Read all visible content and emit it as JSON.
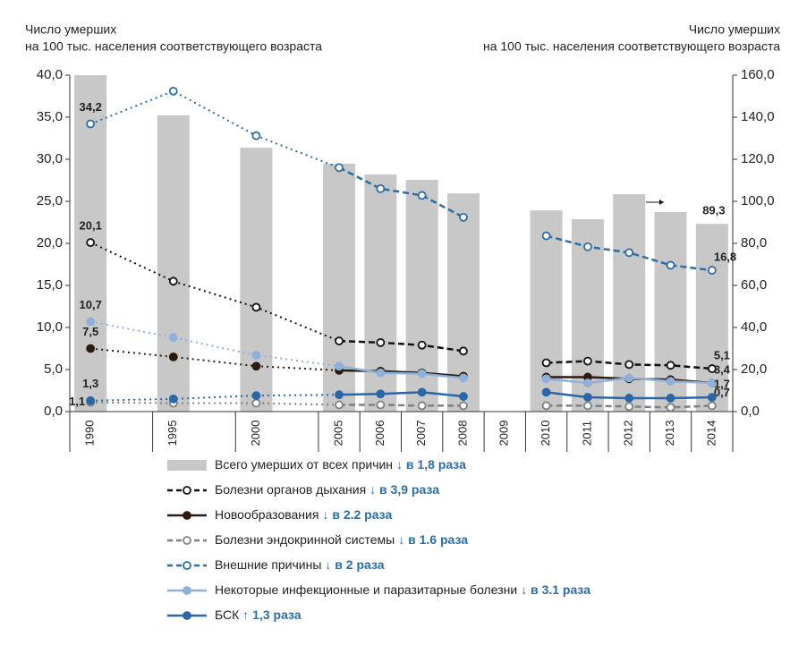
{
  "chart_data": {
    "type": "bar_line",
    "y_label": [
      "Число умерших",
      "на 100 тыс. населения соответствующего возраста"
    ],
    "y2_label": [
      "Число умерших",
      "на 100 тыс. населения соответствующего возраста"
    ],
    "categories": [
      "1990",
      "1995",
      "2000",
      "2005",
      "2006",
      "2007",
      "2008",
      "2009",
      "2010",
      "2011",
      "2012",
      "2013",
      "2014"
    ],
    "ylim": [
      0,
      40
    ],
    "yticks": [
      {
        "value": 0,
        "label": "0,0"
      },
      {
        "value": 5,
        "label": "5,0"
      },
      {
        "value": 10,
        "label": "10,0"
      },
      {
        "value": 15,
        "label": "15,0"
      },
      {
        "value": 20,
        "label": "20,0"
      },
      {
        "value": 25,
        "label": "25,0"
      },
      {
        "value": 30,
        "label": "30,0"
      },
      {
        "value": 35,
        "label": "35,0"
      },
      {
        "value": 40,
        "label": "40,0"
      }
    ],
    "y2lim": [
      0,
      160
    ],
    "y2ticks": [
      {
        "value": 0,
        "label": "0,0"
      },
      {
        "value": 20,
        "label": "20,0"
      },
      {
        "value": 40,
        "label": "40,0"
      },
      {
        "value": 60,
        "label": "60,0"
      },
      {
        "value": 80,
        "label": "80,0"
      },
      {
        "value": 100,
        "label": "100,0"
      },
      {
        "value": 120,
        "label": "120,0"
      },
      {
        "value": 140,
        "label": "140,0"
      },
      {
        "value": 160,
        "label": "160,0"
      }
    ],
    "series": [
      {
        "name": "Всего умерших от всех причин",
        "change": "↓ в 1,8 раза",
        "kind": "bar",
        "axis": "y2",
        "color": "#c8c8c8",
        "values": [
          160,
          140.9,
          125.5,
          117.9,
          112.8,
          110.2,
          103.8,
          null,
          95.7,
          91.5,
          103.4,
          94.9,
          89.3
        ],
        "value_labels": [
          null,
          null,
          null,
          null,
          null,
          null,
          null,
          null,
          null,
          null,
          null,
          null,
          "89,3"
        ]
      },
      {
        "name": "Болезни органов дыхания",
        "change": "↓ в 3,9 раза",
        "kind": "line",
        "dash": true,
        "marker": "hollow",
        "color": "#111111",
        "label_color": "#111111",
        "values": [
          20.1,
          15.5,
          12.4,
          8.4,
          8.2,
          7.9,
          7.2,
          null,
          5.8,
          6.0,
          5.6,
          5.5,
          5.1
        ],
        "value_labels": [
          "20,1",
          null,
          null,
          null,
          null,
          null,
          null,
          null,
          null,
          null,
          null,
          null,
          "5,1"
        ]
      },
      {
        "name": "Новообразования",
        "change": "↓ в 2.2 раза",
        "kind": "line",
        "dash": false,
        "marker": "filled",
        "color": "#2b1a10",
        "label_color": "#222222",
        "values": [
          7.5,
          6.5,
          5.4,
          4.9,
          4.8,
          4.6,
          4.2,
          null,
          4.1,
          4.1,
          3.9,
          3.8,
          3.4
        ],
        "value_labels": [
          "7,5",
          null,
          null,
          null,
          null,
          null,
          null,
          null,
          null,
          null,
          null,
          null,
          "3,4"
        ]
      },
      {
        "name": "Болезни эндокринной системы",
        "change": "↓ в 1.6 раза",
        "kind": "line",
        "dash": true,
        "marker": "hollow",
        "color": "#808080",
        "label_color": "#808080",
        "values": [
          1.1,
          1.0,
          1.0,
          0.8,
          0.8,
          0.7,
          0.7,
          null,
          0.7,
          0.7,
          0.6,
          0.5,
          0.7
        ],
        "value_labels": [
          "1,1",
          null,
          null,
          null,
          null,
          null,
          null,
          null,
          null,
          null,
          null,
          null,
          "0,7"
        ]
      },
      {
        "name": "Внешние причины",
        "change": "↓ в 2 раза",
        "kind": "line",
        "dash": true,
        "marker": "hollow",
        "color": "#2e6da4",
        "label_color": "#2e6da4",
        "values": [
          34.2,
          38.1,
          32.8,
          29.0,
          26.5,
          25.7,
          23.1,
          null,
          20.9,
          19.6,
          18.9,
          17.4,
          16.8
        ],
        "value_labels": [
          "34,2",
          null,
          null,
          null,
          null,
          null,
          null,
          null,
          null,
          null,
          null,
          null,
          "16,8"
        ]
      },
      {
        "name": "Некоторые инфекционные и паразитарные болезни",
        "change": "↓ в 3.1 раза",
        "kind": "line",
        "dash": false,
        "marker": "filled",
        "color": "#8fb0d8",
        "label_color": "#8fb0d8",
        "values": [
          10.7,
          8.8,
          6.7,
          5.4,
          4.6,
          4.5,
          4.0,
          null,
          3.9,
          3.4,
          4.0,
          3.6,
          3.4
        ],
        "value_labels": [
          "10,7",
          null,
          null,
          null,
          null,
          null,
          null,
          null,
          null,
          null,
          null,
          null,
          null
        ]
      },
      {
        "name": "БСК",
        "change": "↑ 1,3 раза",
        "kind": "line",
        "dash": false,
        "marker": "filled",
        "color": "#2a67a6",
        "label_color": "#2e6da4",
        "values": [
          1.3,
          1.5,
          1.9,
          2.0,
          2.1,
          2.3,
          1.8,
          null,
          2.3,
          1.7,
          1.6,
          1.6,
          1.7
        ],
        "value_labels": [
          "1,3",
          null,
          null,
          null,
          null,
          null,
          null,
          null,
          null,
          null,
          null,
          null,
          "1,7"
        ]
      }
    ]
  }
}
